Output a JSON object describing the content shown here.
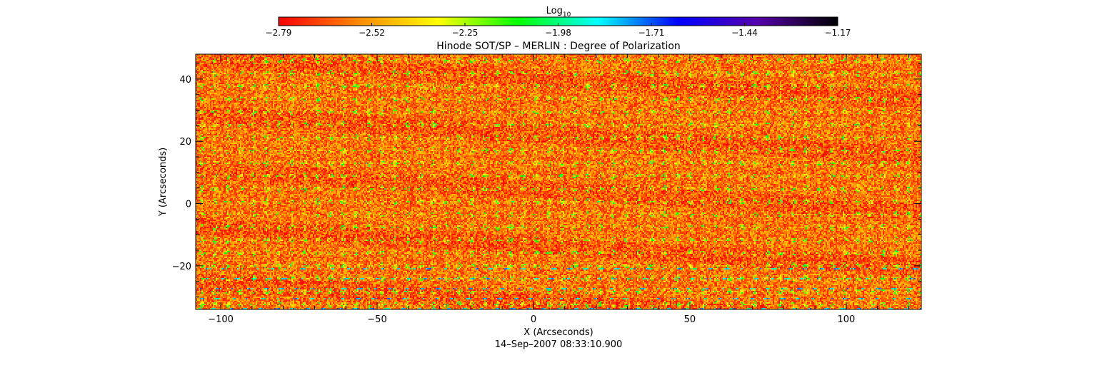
{
  "chart_data": {
    "type": "heatmap",
    "title": "Hinode SOT/SP – MERLIN : Degree of Polarization",
    "xlabel": "X (Arcseconds)",
    "ylabel": "Y (Arcseconds)",
    "timestamp": "14–Sep–2007 08:33:10.900",
    "xlim": [
      -108,
      124
    ],
    "ylim": [
      -34,
      48
    ],
    "x_ticks": [
      {
        "value": -100,
        "label": "−100"
      },
      {
        "value": -50,
        "label": "−50"
      },
      {
        "value": 0,
        "label": "0"
      },
      {
        "value": 50,
        "label": "50"
      },
      {
        "value": 100,
        "label": "100"
      }
    ],
    "y_ticks": [
      {
        "value": -20,
        "label": "−20"
      },
      {
        "value": 0,
        "label": "0"
      },
      {
        "value": 20,
        "label": "20"
      },
      {
        "value": 40,
        "label": "40"
      }
    ],
    "colorbar": {
      "label_base": "Log",
      "label_sub": "10",
      "min": -2.79,
      "max": -1.17,
      "ticks": [
        {
          "value": -2.79,
          "label": "−2.79"
        },
        {
          "value": -2.52,
          "label": "−2.52"
        },
        {
          "value": -2.25,
          "label": "−2.25"
        },
        {
          "value": -1.98,
          "label": "−1.98"
        },
        {
          "value": -1.71,
          "label": "−1.71"
        },
        {
          "value": -1.44,
          "label": "−1.44"
        },
        {
          "value": -1.17,
          "label": "−1.17"
        }
      ],
      "colors": [
        "#ff0000",
        "#ff8800",
        "#ffff00",
        "#00ff00",
        "#00ffff",
        "#0000ff",
        "#5500aa",
        "#000000"
      ]
    },
    "field_summary": {
      "background_value": -2.75,
      "speckle_value": -2.5,
      "cell_peak_value": -2.0,
      "high_polarization_band_y": [
        -34,
        -18
      ],
      "high_polarization_peak": -1.7
    }
  }
}
